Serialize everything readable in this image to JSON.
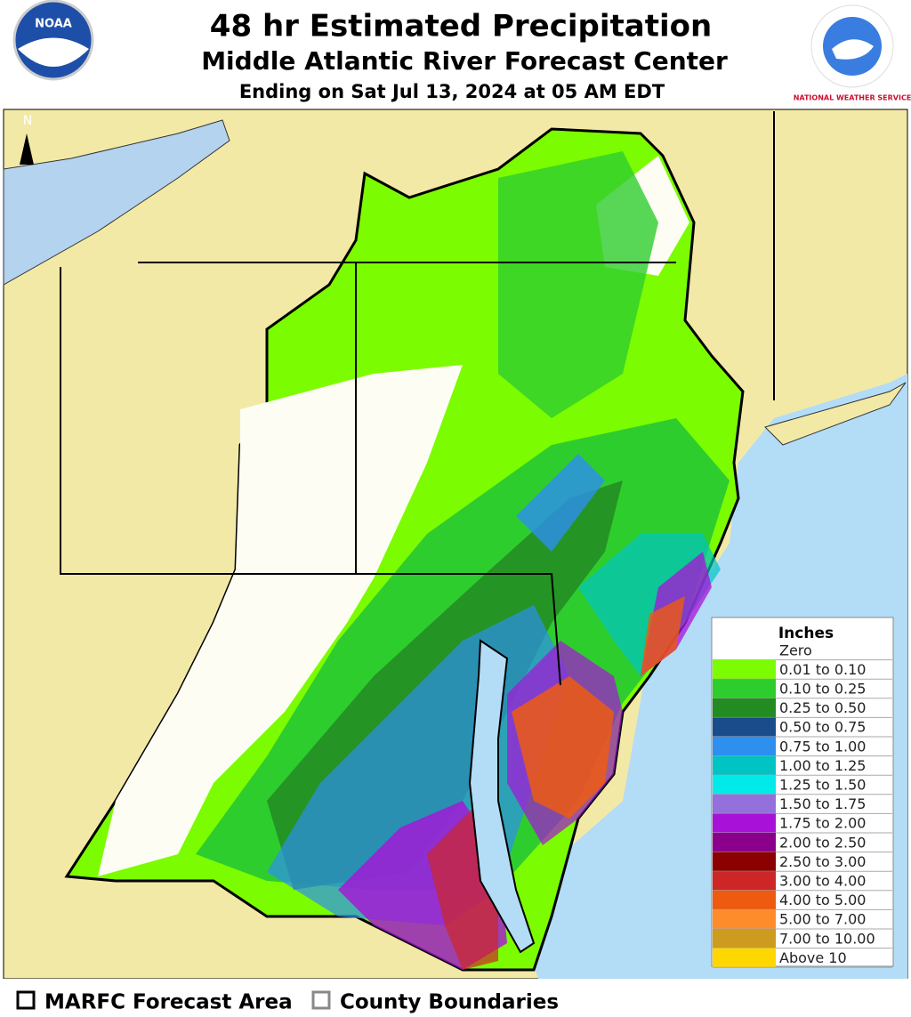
{
  "header": {
    "title": "48 hr Estimated Precipitation",
    "subtitle": "Middle Atlantic River Forecast Center",
    "ending": "Ending on Sat Jul 13, 2024 at 05 AM EDT"
  },
  "logos": {
    "noaa": "NOAA",
    "nws": "NATIONAL WEATHER SERVICE"
  },
  "map": {
    "north_label": "N"
  },
  "legend": {
    "title": "Inches",
    "entries": [
      {
        "label": "Zero",
        "color": "#ffffff"
      },
      {
        "label": "0.01 to 0.10",
        "color": "#7cfc00"
      },
      {
        "label": "0.10 to 0.25",
        "color": "#2ecd2e"
      },
      {
        "label": "0.25 to 0.50",
        "color": "#228b22"
      },
      {
        "label": "0.50 to 0.75",
        "color": "#1a4c8c"
      },
      {
        "label": "0.75 to 1.00",
        "color": "#2d8ff0"
      },
      {
        "label": "1.00 to 1.25",
        "color": "#00c4c4"
      },
      {
        "label": "1.25 to 1.50",
        "color": "#00eaea"
      },
      {
        "label": "1.50 to 1.75",
        "color": "#9370db"
      },
      {
        "label": "1.75 to 2.00",
        "color": "#a812d8"
      },
      {
        "label": "2.00 to 2.50",
        "color": "#8b008b"
      },
      {
        "label": "2.50 to 3.00",
        "color": "#8b0000"
      },
      {
        "label": "3.00 to 4.00",
        "color": "#cd2626"
      },
      {
        "label": "4.00 to 5.00",
        "color": "#ee5a10"
      },
      {
        "label": "5.00 to 7.00",
        "color": "#ff8c2a"
      },
      {
        "label": "7.00 to 10.00",
        "color": "#cd9b1d"
      },
      {
        "label": "Above 10",
        "color": "#ffd700"
      }
    ]
  },
  "footer": {
    "items": [
      "MARFC Forecast Area",
      "County Boundaries"
    ]
  }
}
